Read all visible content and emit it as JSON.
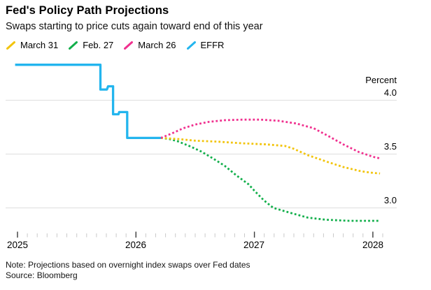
{
  "header": {
    "title": "Fed's Policy Path Projections",
    "subtitle": "Swaps starting to price cuts again toward end of this year"
  },
  "legend": [
    {
      "label": "March 31",
      "color": "#F2C40D"
    },
    {
      "label": "Feb. 27",
      "color": "#12AF4B"
    },
    {
      "label": "March 26",
      "color": "#F0318F"
    },
    {
      "label": "EFFR",
      "color": "#23B5EE"
    }
  ],
  "chart_data": {
    "type": "line",
    "unit_label": "Percent",
    "x_tick_labels": [
      "2025",
      "2026",
      "2027",
      "2028"
    ],
    "x_ticks": [
      2025,
      2026,
      2027,
      2028
    ],
    "y_tick_labels": [
      "4.0",
      "3.5",
      "3.0"
    ],
    "y_ticks": [
      4.0,
      3.5,
      3.0
    ],
    "xlim": [
      2024.97,
      2028.25
    ],
    "ylim": [
      2.73,
      4.45
    ],
    "grid": "horizontal",
    "legend_position": "top-left",
    "colors": {
      "grid": "#E2E2E2",
      "minor_tick": "#C9C9C9",
      "major_tick": "#3a3a3a"
    },
    "series": [
      {
        "name": "Feb. 27",
        "color": "#12AF4B",
        "style": "dotted",
        "points": [
          [
            2026.21,
            3.65
          ],
          [
            2026.28,
            3.64
          ],
          [
            2026.35,
            3.62
          ],
          [
            2026.45,
            3.575
          ],
          [
            2026.55,
            3.525
          ],
          [
            2026.65,
            3.46
          ],
          [
            2026.75,
            3.39
          ],
          [
            2026.85,
            3.3
          ],
          [
            2026.95,
            3.22
          ],
          [
            2027.0,
            3.16
          ],
          [
            2027.08,
            3.07
          ],
          [
            2027.16,
            3.0
          ],
          [
            2027.3,
            2.955
          ],
          [
            2027.45,
            2.91
          ],
          [
            2027.6,
            2.89
          ],
          [
            2027.8,
            2.88
          ],
          [
            2028.0,
            2.88
          ],
          [
            2028.06,
            2.88
          ]
        ]
      },
      {
        "name": "March 31",
        "color": "#F2C40D",
        "style": "dotted",
        "points": [
          [
            2026.21,
            3.65
          ],
          [
            2026.35,
            3.64
          ],
          [
            2026.5,
            3.625
          ],
          [
            2026.7,
            3.615
          ],
          [
            2026.9,
            3.6
          ],
          [
            2027.1,
            3.59
          ],
          [
            2027.26,
            3.575
          ],
          [
            2027.33,
            3.55
          ],
          [
            2027.45,
            3.49
          ],
          [
            2027.61,
            3.43
          ],
          [
            2027.75,
            3.38
          ],
          [
            2027.9,
            3.34
          ],
          [
            2028.0,
            3.325
          ],
          [
            2028.06,
            3.32
          ]
        ]
      },
      {
        "name": "March 26",
        "color": "#F0318F",
        "style": "dotted",
        "points": [
          [
            2026.21,
            3.65
          ],
          [
            2026.3,
            3.69
          ],
          [
            2026.4,
            3.74
          ],
          [
            2026.5,
            3.775
          ],
          [
            2026.62,
            3.8
          ],
          [
            2026.75,
            3.815
          ],
          [
            2026.9,
            3.82
          ],
          [
            2027.05,
            3.82
          ],
          [
            2027.2,
            3.81
          ],
          [
            2027.35,
            3.785
          ],
          [
            2027.5,
            3.74
          ],
          [
            2027.62,
            3.67
          ],
          [
            2027.75,
            3.59
          ],
          [
            2027.88,
            3.52
          ],
          [
            2028.0,
            3.475
          ],
          [
            2028.06,
            3.46
          ]
        ]
      },
      {
        "name": "EFFR",
        "color": "#23B5EE",
        "style": "solid",
        "points": [
          [
            2024.98,
            4.33
          ],
          [
            2025.7,
            4.33
          ],
          [
            2025.7,
            4.1
          ],
          [
            2025.755,
            4.1
          ],
          [
            2025.765,
            4.13
          ],
          [
            2025.807,
            4.13
          ],
          [
            2025.807,
            3.87
          ],
          [
            2025.853,
            3.87
          ],
          [
            2025.858,
            3.89
          ],
          [
            2025.926,
            3.89
          ],
          [
            2025.926,
            3.65
          ],
          [
            2026.21,
            3.65
          ]
        ]
      }
    ]
  },
  "footer": {
    "note": "Note: Projections based on overnight index swaps over Fed dates",
    "source": "Source: Bloomberg"
  }
}
